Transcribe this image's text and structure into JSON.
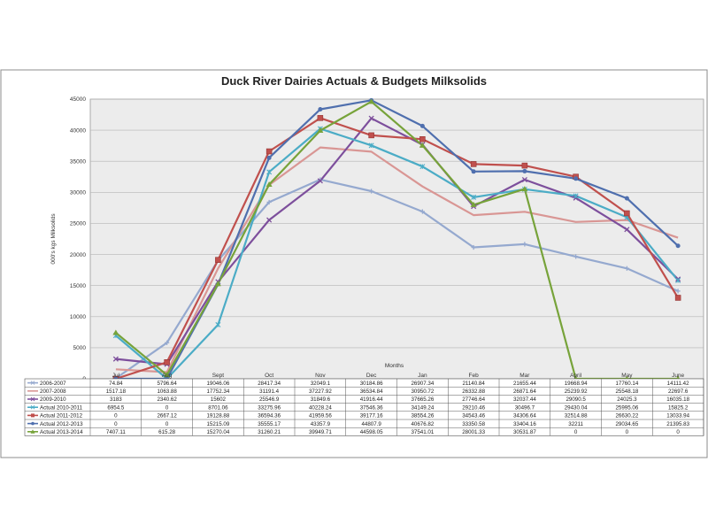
{
  "chart_data": {
    "type": "line",
    "title": "Duck River Dairies Actuals & Budgets Milksolids",
    "xlabel": "Months",
    "ylabel": "000's kgs Milksolids",
    "ylim": [
      0,
      45000
    ],
    "yticks": [
      0,
      5000,
      10000,
      15000,
      20000,
      25000,
      30000,
      35000,
      40000,
      45000
    ],
    "grid": true,
    "legend": "data-table-left",
    "categories": [
      "Jul",
      "Aug",
      "Sept",
      "Oct",
      "Nov",
      "Dec",
      "Jan",
      "Feb",
      "Mar",
      "April",
      "May",
      "June"
    ],
    "series": [
      {
        "name": "2006-2007",
        "color": "#95a9cf",
        "marker": "plus",
        "values": [
          74.84,
          5796.64,
          19046.06,
          28417.34,
          32049.1,
          30184.86,
          26907.34,
          21140.84,
          21655.44,
          19668.94,
          17760.14,
          14111.42
        ],
        "labels": [
          "74.84",
          "5796.64",
          "19046.06",
          "28417.34",
          "32049.1",
          "30184.86",
          "26907.34",
          "21140.84",
          "21655.44",
          "19668.94",
          "17760.14",
          "14111.42"
        ]
      },
      {
        "name": "2007-2008",
        "color": "#d99694",
        "marker": "none",
        "values": [
          1517.18,
          1063.88,
          17752.34,
          31191.4,
          37227.92,
          36534.84,
          30950.72,
          26332.88,
          26871.64,
          25239.92,
          25548.18,
          22697.6
        ],
        "labels": [
          "1517.18",
          "1063.88",
          "17752.34",
          "31191.4",
          "37227.92",
          "36534.84",
          "30950.72",
          "26332.88",
          "26871.64",
          "25239.92",
          "25548.18",
          "22697.6"
        ]
      },
      {
        "name": "2009-2010",
        "color": "#7d4f9c",
        "marker": "x",
        "values": [
          3183,
          2340.62,
          15602,
          25546.9,
          31849.6,
          41916.44,
          37665.26,
          27746.64,
          32037.44,
          29090.5,
          24025.3,
          16035.18
        ],
        "labels": [
          "3183",
          "2340.62",
          "15602",
          "25546.9",
          "31849.6",
          "41916.44",
          "37665.26",
          "27746.64",
          "32037.44",
          "29090.5",
          "24025.3",
          "16035.18"
        ]
      },
      {
        "name": "Actual 2010-2011",
        "color": "#4bacc6",
        "marker": "star",
        "values": [
          6954.5,
          0,
          8701.06,
          33275.96,
          40228.24,
          37546.36,
          34149.24,
          29210.46,
          30496.7,
          29430.04,
          25995.06,
          15825.2
        ],
        "labels": [
          "6954.5",
          "0",
          "8701.06",
          "33275.96",
          "40228.24",
          "37546.36",
          "34149.24",
          "29210.46",
          "30496.7",
          "29430.04",
          "25995.06",
          "15825.2"
        ]
      },
      {
        "name": "Actual 2011-2012",
        "color": "#c0504d",
        "marker": "square",
        "values": [
          0,
          2667.12,
          19128.88,
          36594.36,
          41959.56,
          39177.16,
          38554.26,
          34543.46,
          34306.64,
          32514.88,
          26630.22,
          13033.94
        ],
        "labels": [
          "0",
          "2667.12",
          "19128.88",
          "36594.36",
          "41959.56",
          "39177.16",
          "38554.26",
          "34543.46",
          "34306.64",
          "32514.88",
          "26630.22",
          "13033.94"
        ]
      },
      {
        "name": "Actual 2012-2013",
        "color": "#4f6fae",
        "marker": "circle",
        "values": [
          0,
          0,
          15215.09,
          35555.17,
          43357.9,
          44807.9,
          40676.82,
          33350.58,
          33404.16,
          32211,
          29034.65,
          21395.83
        ],
        "labels": [
          "0",
          "0",
          "15215.09",
          "35555.17",
          "43357.9",
          "44807.9",
          "40676.82",
          "33350.58",
          "33404.16",
          "32211",
          "29034.65",
          "21395.83"
        ]
      },
      {
        "name": "Actual 2013-2014",
        "color": "#77a33a",
        "marker": "triangle",
        "values": [
          7407.11,
          615.28,
          15270.04,
          31260.21,
          39949.71,
          44598.05,
          37541.01,
          28001.33,
          30531.87,
          0,
          0,
          0
        ],
        "labels": [
          "7407.11",
          "615.28",
          "15270.04",
          "31260.21",
          "39949.71",
          "44598.05",
          "37541.01",
          "28001.33",
          "30531.87",
          "0",
          "0",
          "0"
        ]
      }
    ]
  }
}
